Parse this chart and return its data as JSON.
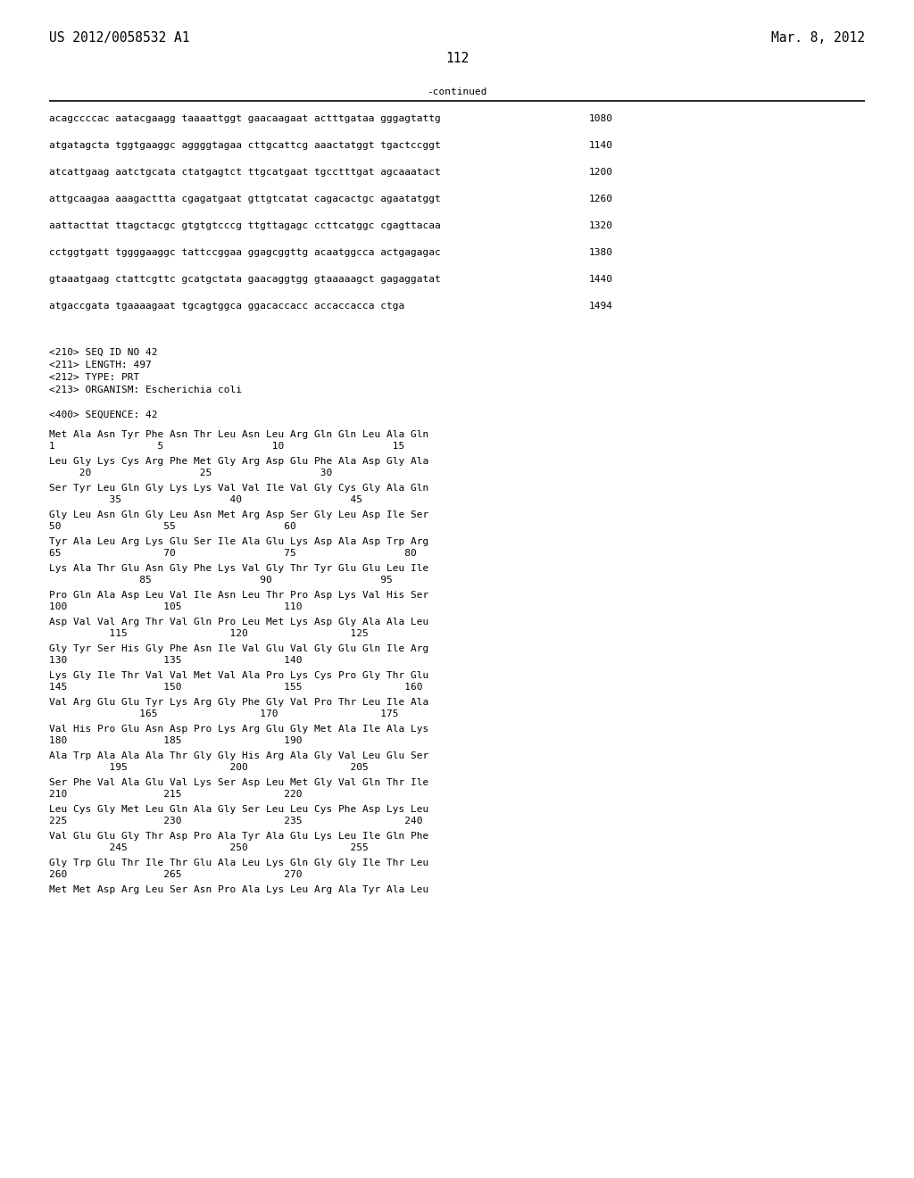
{
  "header_left": "US 2012/0058532 A1",
  "header_right": "Mar. 8, 2012",
  "page_number": "112",
  "continued_label": "-continued",
  "background_color": "#ffffff",
  "text_color": "#000000",
  "line_color": "#000000",
  "font_size_header": 10.5,
  "font_size_body": 8.0,
  "font_size_page": 10.5,
  "dna_lines": [
    [
      "acagccccac aatacgaagg taaaattggt gaacaagaat actttgataa gggagtattg",
      "1080"
    ],
    [
      "atgatagcta tggtgaaggc aggggtagaa cttgcattcg aaactatggt tgactccggt",
      "1140"
    ],
    [
      "atcattgaag aatctgcata ctatgagtct ttgcatgaat tgcctttgat agcaaatact",
      "1200"
    ],
    [
      "attgcaagaa aaagacttta cgagatgaat gttgtcatat cagacactgc agaatatggt",
      "1260"
    ],
    [
      "aattacttat ttagctacgc gtgtgtcccg ttgttagagc ccttcatggc cgagttacaa",
      "1320"
    ],
    [
      "cctggtgatt tggggaaggc tattccggaa ggagcggttg acaatggcca actgagagac",
      "1380"
    ],
    [
      "gtaaatgaag ctattcgttc gcatgctata gaacaggtgg gtaaaaagct gagaggatat",
      "1440"
    ],
    [
      "atgaccgata tgaaaagaat tgcagtggca ggacaccacc accaccacca ctga",
      "1494"
    ]
  ],
  "meta_lines": [
    "<210> SEQ ID NO 42",
    "<211> LENGTH: 497",
    "<212> TYPE: PRT",
    "<213> ORGANISM: Escherichia coli"
  ],
  "seq_label": "<400> SEQUENCE: 42",
  "protein_blocks": [
    {
      "seq": "Met Ala Asn Tyr Phe Asn Thr Leu Asn Leu Arg Gln Gln Leu Ala Gln",
      "num": "1                 5                  10                  15"
    },
    {
      "seq": "Leu Gly Lys Cys Arg Phe Met Gly Arg Asp Glu Phe Ala Asp Gly Ala",
      "num": "     20                  25                  30"
    },
    {
      "seq": "Ser Tyr Leu Gln Gly Lys Lys Val Val Ile Val Gly Cys Gly Ala Gln",
      "num": "          35                  40                  45"
    },
    {
      "seq": "Gly Leu Asn Gln Gly Leu Asn Met Arg Asp Ser Gly Leu Asp Ile Ser",
      "num": "50                 55                  60"
    },
    {
      "seq": "Tyr Ala Leu Arg Lys Glu Ser Ile Ala Glu Lys Asp Ala Asp Trp Arg",
      "num": "65                 70                  75                  80"
    },
    {
      "seq": "Lys Ala Thr Glu Asn Gly Phe Lys Val Gly Thr Tyr Glu Glu Leu Ile",
      "num": "               85                  90                  95"
    },
    {
      "seq": "Pro Gln Ala Asp Leu Val Ile Asn Leu Thr Pro Asp Lys Val His Ser",
      "num": "100                105                 110"
    },
    {
      "seq": "Asp Val Val Arg Thr Val Gln Pro Leu Met Lys Asp Gly Ala Ala Leu",
      "num": "          115                 120                 125"
    },
    {
      "seq": "Gly Tyr Ser His Gly Phe Asn Ile Val Glu Val Gly Glu Gln Ile Arg",
      "num": "130                135                 140"
    },
    {
      "seq": "Lys Gly Ile Thr Val Val Met Val Ala Pro Lys Cys Pro Gly Thr Glu",
      "num": "145                150                 155                 160"
    },
    {
      "seq": "Val Arg Glu Glu Tyr Lys Arg Gly Phe Gly Val Pro Thr Leu Ile Ala",
      "num": "               165                 170                 175"
    },
    {
      "seq": "Val His Pro Glu Asn Asp Pro Lys Arg Glu Gly Met Ala Ile Ala Lys",
      "num": "180                185                 190"
    },
    {
      "seq": "Ala Trp Ala Ala Ala Thr Gly Gly His Arg Ala Gly Val Leu Glu Ser",
      "num": "          195                 200                 205"
    },
    {
      "seq": "Ser Phe Val Ala Glu Val Lys Ser Asp Leu Met Gly Val Gln Thr Ile",
      "num": "210                215                 220"
    },
    {
      "seq": "Leu Cys Gly Met Leu Gln Ala Gly Ser Leu Leu Cys Phe Asp Lys Leu",
      "num": "225                230                 235                 240"
    },
    {
      "seq": "Val Glu Glu Gly Thr Asp Pro Ala Tyr Ala Glu Lys Leu Ile Gln Phe",
      "num": "          245                 250                 255"
    },
    {
      "seq": "Gly Trp Glu Thr Ile Thr Glu Ala Leu Lys Gln Gly Gly Ile Thr Leu",
      "num": "260                265                 270"
    },
    {
      "seq": "Met Met Asp Arg Leu Ser Asn Pro Ala Lys Leu Arg Ala Tyr Ala Leu",
      "num": ""
    }
  ]
}
